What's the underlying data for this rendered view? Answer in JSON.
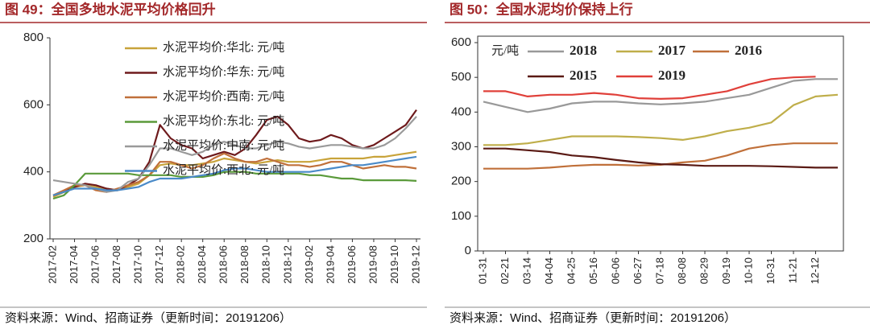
{
  "chart_data": [
    {
      "type": "line",
      "title": "图 49：全国多地水泥平均价格回升",
      "source": "资料来源：Wind、招商证券（更新时间：20191206）",
      "categories": [
        "2017-02",
        null,
        "2017-04",
        null,
        "2017-06",
        null,
        "2017-08",
        null,
        "2017-10",
        null,
        "2017-12",
        null,
        "2018-02",
        null,
        "2018-04",
        null,
        "2018-06",
        null,
        "2018-08",
        null,
        "2018-10",
        null,
        "2018-12",
        null,
        "2019-02",
        null,
        "2019-04",
        null,
        "2019-06",
        null,
        "2019-08",
        null,
        "2019-10",
        null,
        "2019-12"
      ],
      "ylim": [
        200,
        800
      ],
      "yticks": [
        200,
        400,
        600,
        800
      ],
      "series": [
        {
          "name": "水泥平均价:华北: 元/吨",
          "color": "#c8a33a",
          "values": [
            325,
            340,
            355,
            360,
            355,
            350,
            345,
            355,
            365,
            390,
            420,
            425,
            420,
            420,
            425,
            430,
            440,
            435,
            430,
            425,
            430,
            435,
            430,
            430,
            430,
            435,
            440,
            440,
            440,
            440,
            445,
            445,
            450,
            455,
            460
          ]
        },
        {
          "name": "水泥平均价:华东: 元/吨",
          "color": "#6e1a1c",
          "values": [
            330,
            340,
            355,
            365,
            360,
            350,
            345,
            360,
            380,
            430,
            540,
            500,
            480,
            470,
            440,
            450,
            460,
            450,
            470,
            510,
            555,
            565,
            540,
            500,
            490,
            495,
            510,
            500,
            480,
            470,
            480,
            500,
            520,
            540,
            585
          ]
        },
        {
          "name": "水泥平均价:西南: 元/吨",
          "color": "#c0703a",
          "values": [
            330,
            345,
            360,
            360,
            345,
            340,
            350,
            360,
            370,
            390,
            430,
            430,
            420,
            410,
            420,
            440,
            455,
            440,
            430,
            430,
            440,
            430,
            420,
            420,
            415,
            420,
            430,
            430,
            420,
            410,
            415,
            420,
            415,
            415,
            410
          ]
        },
        {
          "name": "水泥平均价:东北: 元/吨",
          "color": "#5a9a3a",
          "values": [
            320,
            330,
            360,
            395,
            395,
            395,
            395,
            395,
            390,
            390,
            390,
            390,
            385,
            385,
            385,
            390,
            400,
            400,
            400,
            395,
            395,
            395,
            395,
            395,
            390,
            390,
            385,
            380,
            380,
            375,
            375,
            375,
            375,
            375,
            373
          ]
        },
        {
          "name": "水泥平均价:中南: 元/吨",
          "color": "#9a9a9a",
          "values": [
            375,
            370,
            365,
            360,
            350,
            340,
            345,
            370,
            380,
            420,
            470,
            470,
            460,
            450,
            460,
            480,
            490,
            480,
            470,
            470,
            480,
            490,
            485,
            475,
            470,
            475,
            480,
            480,
            475,
            470,
            470,
            480,
            500,
            530,
            565
          ]
        },
        {
          "name": "水泥平均价:西北: 元/吨",
          "color": "#4a8ac8",
          "values": [
            330,
            340,
            350,
            350,
            350,
            345,
            345,
            350,
            355,
            370,
            380,
            380,
            380,
            385,
            390,
            395,
            405,
            410,
            410,
            405,
            400,
            400,
            400,
            400,
            400,
            405,
            410,
            415,
            420,
            420,
            425,
            430,
            435,
            440,
            445
          ]
        }
      ]
    },
    {
      "type": "line",
      "title": "图 50：全国水泥均价保持上行",
      "source": "资料来源：Wind、招商证券（更新时间：20191206）",
      "unit": "元/吨",
      "categories": [
        "01-31",
        "02-21",
        "03-14",
        "04-04",
        "04-25",
        "05-16",
        "06-06",
        "06-27",
        "07-18",
        "08-08",
        "08-29",
        "09-19",
        "10-10",
        "10-31",
        "11-21",
        "12-12",
        null
      ],
      "ylim": [
        0,
        600
      ],
      "yticks": [
        0,
        100,
        200,
        300,
        400,
        500,
        600
      ],
      "series": [
        {
          "name": "2018",
          "color": "#999999",
          "values": [
            430,
            415,
            400,
            410,
            425,
            430,
            430,
            425,
            422,
            425,
            430,
            440,
            450,
            470,
            490,
            495,
            495
          ]
        },
        {
          "name": "2017",
          "color": "#bfae4a",
          "values": [
            305,
            305,
            310,
            320,
            330,
            330,
            330,
            328,
            325,
            320,
            330,
            345,
            355,
            370,
            420,
            445,
            450
          ]
        },
        {
          "name": "2016",
          "color": "#c0703a",
          "values": [
            237,
            237,
            237,
            240,
            245,
            248,
            248,
            246,
            248,
            255,
            260,
            275,
            295,
            305,
            310,
            310,
            310
          ]
        },
        {
          "name": "2015",
          "color": "#5a1a14",
          "values": [
            295,
            295,
            290,
            285,
            275,
            270,
            262,
            255,
            250,
            248,
            245,
            245,
            245,
            244,
            242,
            240,
            240
          ]
        },
        {
          "name": "2019",
          "color": "#e0403a",
          "values": [
            460,
            460,
            445,
            450,
            450,
            455,
            450,
            440,
            438,
            440,
            450,
            460,
            480,
            495,
            500,
            502,
            null
          ]
        }
      ]
    }
  ]
}
